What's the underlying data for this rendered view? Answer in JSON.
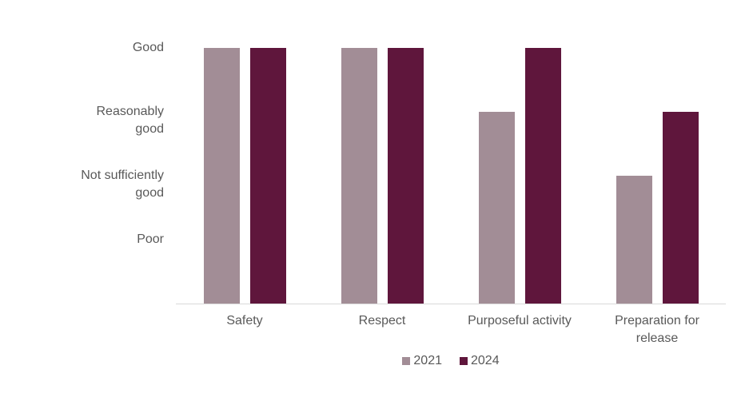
{
  "chart_data": {
    "type": "bar",
    "title": "",
    "xlabel": "",
    "ylabel": "",
    "categories": [
      "Safety",
      "Respect",
      "Purposeful activity",
      "Preparation for\nrelease"
    ],
    "series": [
      {
        "name": "2021",
        "color": "#a28d96",
        "values": [
          4,
          4,
          3,
          2
        ]
      },
      {
        "name": "2024",
        "color": "#5f163c",
        "values": [
          4,
          4,
          4,
          3
        ]
      }
    ],
    "y_axis": {
      "min": 0,
      "max": 4,
      "ticks": [
        {
          "value": 4,
          "label": "Good"
        },
        {
          "value": 3,
          "label": "Reasonably\ngood"
        },
        {
          "value": 2,
          "label": "Not sufficiently\ngood"
        },
        {
          "value": 1,
          "label": "Poor"
        }
      ],
      "scale_note": "ordinal: 4=Good, 3=Reasonably good, 2=Not sufficiently good, 1=Poor"
    },
    "legend": {
      "position": "bottom",
      "items": [
        "2021",
        "2024"
      ]
    },
    "grid": false,
    "colors": {
      "series_2021": "#a28d96",
      "series_2024": "#5f163c",
      "axis_line": "#d9d9d9",
      "label_text": "#595959",
      "background": "#ffffff"
    }
  }
}
